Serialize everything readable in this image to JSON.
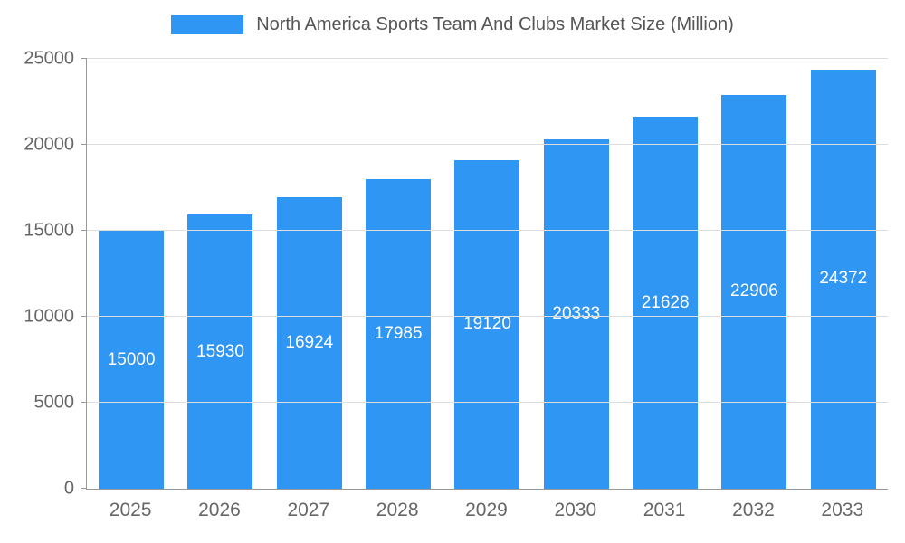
{
  "title": "North America Sports Team And Clubs Market Size (Million)",
  "colors": {
    "bar": "#2F96F3",
    "grid": "#dddddd",
    "axis": "#999999",
    "tick_text": "#666666",
    "title_text": "#555555",
    "bar_label_text": "#ffffff"
  },
  "chart_data": {
    "type": "bar",
    "title": "North America Sports Team And Clubs Market Size (Million)",
    "categories": [
      "2025",
      "2026",
      "2027",
      "2028",
      "2029",
      "2030",
      "2031",
      "2032",
      "2033"
    ],
    "values": [
      15000,
      15930,
      16924,
      17985,
      19120,
      20333,
      21628,
      22906,
      24372
    ],
    "xlabel": "",
    "ylabel": "",
    "ylim": [
      0,
      25000
    ],
    "yticks": [
      0,
      5000,
      10000,
      15000,
      20000,
      25000
    ],
    "grid": true,
    "legend_position": "top",
    "value_labels": "inside-center"
  }
}
